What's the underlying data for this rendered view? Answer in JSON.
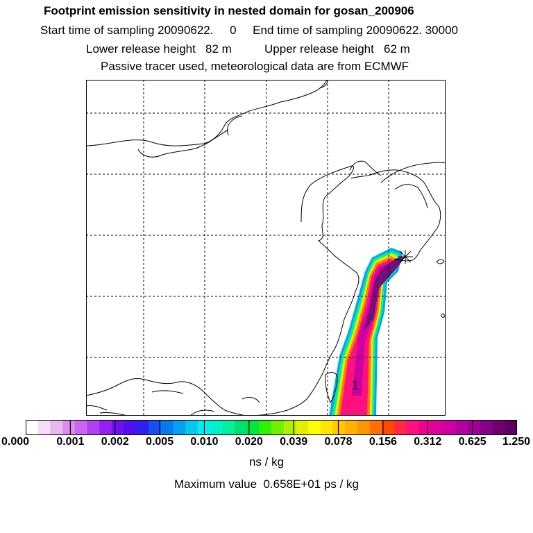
{
  "titles": {
    "line1": "Footprint emission sensitivity in nested domain for gosan_200906",
    "line2": "Start time of sampling 20090622.     0     End time of sampling 20090622. 30000",
    "line3": "Lower release height   82 m          Upper release height   62 m",
    "line4": "Passive tracer used, meteorological data are from ECMWF"
  },
  "map": {
    "plume_label": "1"
  },
  "colorbar": {
    "ticks": [
      "0.000",
      "0.001",
      "0.002",
      "0.005",
      "0.010",
      "0.020",
      "0.039",
      "0.078",
      "0.156",
      "0.312",
      "0.625",
      "1.250"
    ],
    "colors": [
      "#ffffff",
      "#f6dcf6",
      "#eab8f0",
      "#dc8cf0",
      "#c866f0",
      "#b040f0",
      "#9620f0",
      "#7010f0",
      "#5010f0",
      "#3020f0",
      "#1850f0",
      "#0a78f0",
      "#06a0f0",
      "#04c8f0",
      "#00f0f0",
      "#00f0c8",
      "#00f0a0",
      "#00e070",
      "#00e640",
      "#30f000",
      "#70f000",
      "#b0f000",
      "#e0f000",
      "#ffff00",
      "#ffe600",
      "#ffc800",
      "#ffb000",
      "#ff9600",
      "#ff7000",
      "#ff4800",
      "#ff2a40",
      "#ff1080",
      "#f00090",
      "#e0009a",
      "#cc00a0",
      "#b000a0",
      "#a00098",
      "#880088",
      "#700070",
      "#5a0060"
    ],
    "unit": "ns / kg"
  },
  "max_value": "Maximum value  0.658E+01 ps / kg"
}
